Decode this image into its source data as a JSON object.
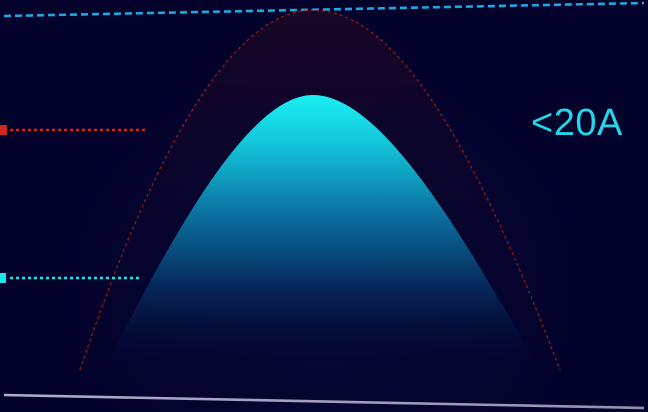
{
  "current_limit_label": "<20A",
  "colors": {
    "background": "#03022b",
    "accent_cyan": "#18e6ef",
    "limit_red": "#d0281e",
    "top_dashed_line": "#1fa8df",
    "baseline": "#c4bee0",
    "label_text": "#1fd9e9"
  }
}
